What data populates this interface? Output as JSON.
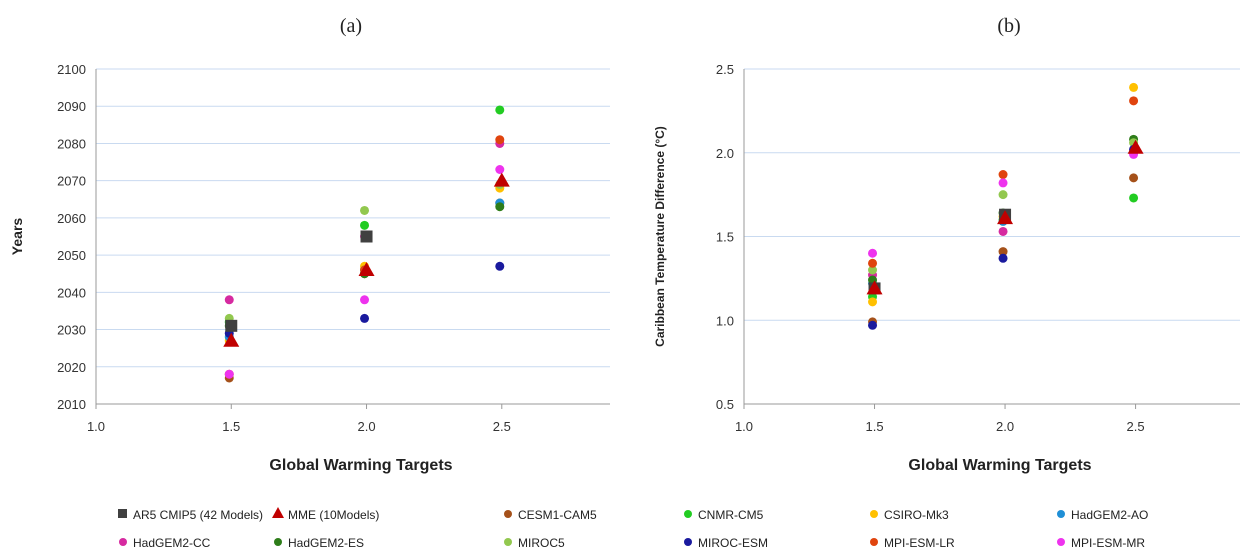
{
  "chart_data": [
    {
      "panel": "(a)",
      "type": "scatter",
      "xlabel": "Global Warming Targets",
      "ylabel": "Years",
      "xlim": [
        1.0,
        2.9
      ],
      "ylim": [
        2010,
        2100
      ],
      "xticks": [
        "1.0",
        "1.5",
        "2.0",
        "2.5"
      ],
      "yticks": [
        "2010",
        "2020",
        "2030",
        "2040",
        "2050",
        "2060",
        "2070",
        "2080",
        "2090",
        "2100"
      ],
      "grid": "horizontal",
      "series": [
        {
          "name": "AR5 CMIP5 (42 Models)",
          "x": [
            1.5,
            2.0
          ],
          "y": [
            2031,
            2055
          ]
        },
        {
          "name": "MME (10 Models)",
          "x": [
            1.5,
            2.0,
            2.5
          ],
          "y": [
            2027,
            2046,
            2070
          ]
        },
        {
          "name": "CESM1-CAM5",
          "x": [
            1.5,
            2.0,
            2.5
          ],
          "y": [
            2017,
            2045,
            2064
          ]
        },
        {
          "name": "CNMR-CM5",
          "x": [
            1.5,
            2.0,
            2.5
          ],
          "y": [
            2032,
            2058,
            2089
          ]
        },
        {
          "name": "CSIRO-Mk3",
          "x": [
            1.5,
            2.0,
            2.5
          ],
          "y": [
            2027,
            2047,
            2068
          ]
        },
        {
          "name": "HadGEM2-AO",
          "x": [
            1.5,
            2.0,
            2.5
          ],
          "y": [
            2028,
            2046,
            2064
          ]
        },
        {
          "name": "HadGEM2-CC",
          "x": [
            1.5,
            2.0,
            2.5
          ],
          "y": [
            2038,
            2055,
            2080
          ]
        },
        {
          "name": "HadGEM2-ES",
          "x": [
            1.5,
            2.0,
            2.5
          ],
          "y": [
            2031,
            2045,
            2063
          ]
        },
        {
          "name": "MIROC5",
          "x": [
            1.5,
            2.0,
            2.5
          ],
          "y": [
            2033,
            2062,
            2069
          ]
        },
        {
          "name": "MIROC-ESM",
          "x": [
            1.5,
            2.0,
            2.5
          ],
          "y": [
            2029,
            2033,
            2047
          ]
        },
        {
          "name": "MPI-ESM-LR",
          "x": [
            1.5,
            2.0,
            2.5
          ],
          "y": [
            2018,
            2046,
            2081
          ]
        },
        {
          "name": "MPI-ESM-MR",
          "x": [
            1.5,
            2.0,
            2.5
          ],
          "y": [
            2018,
            2038,
            2073
          ]
        }
      ]
    },
    {
      "panel": "(b)",
      "type": "scatter",
      "xlabel": "Global Warming Targets",
      "ylabel": "Caribbean Temperature Difference (°C)",
      "xlim": [
        1.0,
        2.9
      ],
      "ylim": [
        0.5,
        2.5
      ],
      "xticks": [
        "1.0",
        "1.5",
        "2.0",
        "2.5"
      ],
      "yticks": [
        "0.5",
        "1.0",
        "1.5",
        "2.0",
        "2.5"
      ],
      "grid": "horizontal",
      "series": [
        {
          "name": "AR5 CMIP5 (42 Models)",
          "x": [
            1.5,
            2.0
          ],
          "y": [
            1.19,
            1.63
          ]
        },
        {
          "name": "MME (10 Models)",
          "x": [
            1.5,
            2.0,
            2.5
          ],
          "y": [
            1.19,
            1.61,
            2.03
          ]
        },
        {
          "name": "CESM1-CAM5",
          "x": [
            1.5,
            2.0,
            2.5
          ],
          "y": [
            0.99,
            1.41,
            1.85
          ]
        },
        {
          "name": "CNMR-CM5",
          "x": [
            1.5,
            2.0,
            2.5
          ],
          "y": [
            1.14,
            1.6,
            1.73
          ]
        },
        {
          "name": "CSIRO-Mk3",
          "x": [
            1.5,
            2.0,
            2.5
          ],
          "y": [
            1.11,
            1.62,
            2.39
          ]
        },
        {
          "name": "HadGEM2-AO",
          "x": [
            1.5,
            2.0,
            2.5
          ],
          "y": [
            1.22,
            1.59,
            2.01
          ]
        },
        {
          "name": "HadGEM2-CC",
          "x": [
            1.5,
            2.0,
            2.5
          ],
          "y": [
            1.27,
            1.53,
            2.0
          ]
        },
        {
          "name": "HadGEM2-ES",
          "x": [
            1.5,
            2.0,
            2.5
          ],
          "y": [
            1.24,
            1.64,
            2.08
          ]
        },
        {
          "name": "MIROC5",
          "x": [
            1.5,
            2.0,
            2.5
          ],
          "y": [
            1.3,
            1.75,
            2.06
          ]
        },
        {
          "name": "MIROC-ESM",
          "x": [
            1.5,
            2.0,
            2.5
          ],
          "y": [
            0.97,
            1.37,
            2.02
          ]
        },
        {
          "name": "MPI-ESM-LR",
          "x": [
            1.5,
            2.0,
            2.5
          ],
          "y": [
            1.34,
            1.87,
            2.31
          ]
        },
        {
          "name": "MPI-ESM-MR",
          "x": [
            1.5,
            2.0,
            2.5
          ],
          "y": [
            1.4,
            1.82,
            1.99
          ]
        }
      ]
    }
  ],
  "legend": {
    "placement": "bottom",
    "items": [
      {
        "name": "AR5 CMIP5 (42 Models)",
        "marker": "square",
        "color": "#404040"
      },
      {
        "name": "MME (10Models)",
        "marker": "triangle",
        "color": "#c00000"
      },
      {
        "name": "CESM1-CAM5",
        "marker": "circle",
        "color": "#a5511a"
      },
      {
        "name": "CNMR-CM5",
        "marker": "circle",
        "color": "#22cc22"
      },
      {
        "name": "CSIRO-Mk3",
        "marker": "circle",
        "color": "#ffc000"
      },
      {
        "name": "HadGEM2-AO",
        "marker": "circle",
        "color": "#1f8fd6"
      },
      {
        "name": "HadGEM2-CC",
        "marker": "circle",
        "color": "#d62aa0"
      },
      {
        "name": "HadGEM2-ES",
        "marker": "circle",
        "color": "#2e7d1a"
      },
      {
        "name": "MIROC5",
        "marker": "circle",
        "color": "#92c84f"
      },
      {
        "name": "MIROC-ESM",
        "marker": "circle",
        "color": "#1a1a9e"
      },
      {
        "name": "MPI-ESM-LR",
        "marker": "circle",
        "color": "#e0440e"
      },
      {
        "name": "MPI-ESM-MR",
        "marker": "circle",
        "color": "#ee33ee"
      }
    ]
  },
  "colors": {
    "gridline": "#c9daf0",
    "axis": "#999999"
  }
}
